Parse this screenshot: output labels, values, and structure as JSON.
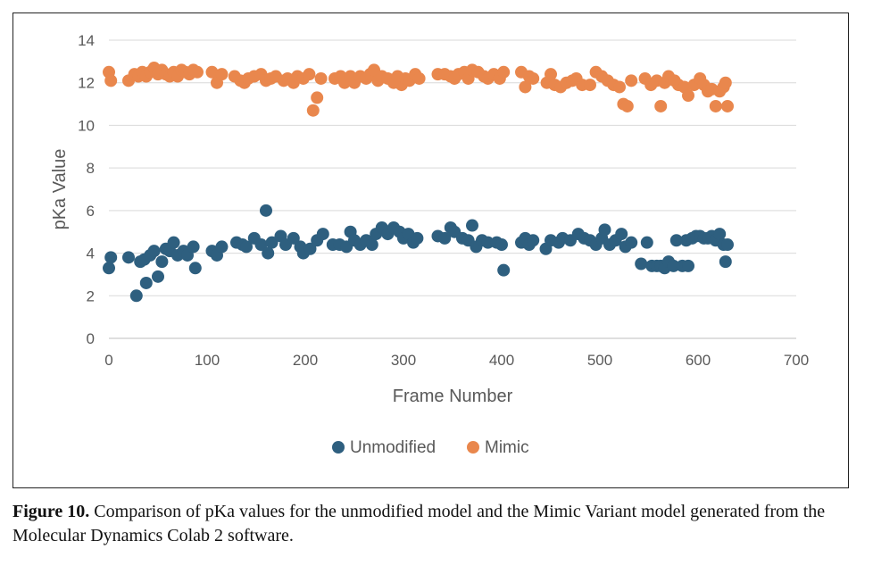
{
  "chart_data": {
    "type": "scatter",
    "xlabel": "Frame Number",
    "ylabel": "pKa Value",
    "xlim": [
      0,
      700
    ],
    "ylim": [
      0,
      14
    ],
    "xticks": [
      "0",
      "100",
      "200",
      "300",
      "400",
      "500",
      "600",
      "700"
    ],
    "yticks": [
      "0",
      "2",
      "4",
      "6",
      "8",
      "10",
      "12",
      "14"
    ],
    "grid": "horizontal",
    "legend_position": "bottom",
    "series": [
      {
        "name": "Unmodified",
        "color": "#2E5F7F",
        "points": [
          [
            0,
            3.3
          ],
          [
            2,
            3.8
          ],
          [
            20,
            3.8
          ],
          [
            28,
            2.0
          ],
          [
            32,
            3.6
          ],
          [
            36,
            3.7
          ],
          [
            38,
            2.6
          ],
          [
            42,
            3.9
          ],
          [
            46,
            4.1
          ],
          [
            50,
            2.9
          ],
          [
            54,
            3.6
          ],
          [
            58,
            4.2
          ],
          [
            62,
            4.1
          ],
          [
            66,
            4.5
          ],
          [
            70,
            3.9
          ],
          [
            76,
            4.1
          ],
          [
            80,
            3.9
          ],
          [
            86,
            4.3
          ],
          [
            88,
            3.3
          ],
          [
            105,
            4.1
          ],
          [
            110,
            3.9
          ],
          [
            115,
            4.3
          ],
          [
            130,
            4.5
          ],
          [
            136,
            4.4
          ],
          [
            140,
            4.3
          ],
          [
            148,
            4.7
          ],
          [
            155,
            4.4
          ],
          [
            160,
            6.0
          ],
          [
            162,
            4.0
          ],
          [
            166,
            4.5
          ],
          [
            175,
            4.8
          ],
          [
            180,
            4.4
          ],
          [
            188,
            4.7
          ],
          [
            195,
            4.3
          ],
          [
            198,
            4.0
          ],
          [
            205,
            4.2
          ],
          [
            212,
            4.6
          ],
          [
            218,
            4.9
          ],
          [
            228,
            4.4
          ],
          [
            235,
            4.4
          ],
          [
            242,
            4.3
          ],
          [
            246,
            5.0
          ],
          [
            250,
            4.6
          ],
          [
            256,
            4.4
          ],
          [
            262,
            4.6
          ],
          [
            268,
            4.4
          ],
          [
            272,
            4.9
          ],
          [
            278,
            5.2
          ],
          [
            284,
            4.9
          ],
          [
            290,
            5.2
          ],
          [
            296,
            5.0
          ],
          [
            300,
            4.7
          ],
          [
            305,
            4.9
          ],
          [
            310,
            4.5
          ],
          [
            314,
            4.7
          ],
          [
            335,
            4.8
          ],
          [
            342,
            4.7
          ],
          [
            348,
            5.2
          ],
          [
            352,
            5.0
          ],
          [
            360,
            4.7
          ],
          [
            366,
            4.6
          ],
          [
            370,
            5.3
          ],
          [
            374,
            4.3
          ],
          [
            380,
            4.6
          ],
          [
            386,
            4.5
          ],
          [
            395,
            4.5
          ],
          [
            400,
            4.4
          ],
          [
            402,
            3.2
          ],
          [
            420,
            4.5
          ],
          [
            424,
            4.7
          ],
          [
            428,
            4.4
          ],
          [
            432,
            4.6
          ],
          [
            445,
            4.2
          ],
          [
            450,
            4.6
          ],
          [
            458,
            4.5
          ],
          [
            462,
            4.7
          ],
          [
            470,
            4.6
          ],
          [
            478,
            4.9
          ],
          [
            484,
            4.7
          ],
          [
            490,
            4.6
          ],
          [
            496,
            4.4
          ],
          [
            502,
            4.7
          ],
          [
            505,
            5.1
          ],
          [
            510,
            4.4
          ],
          [
            516,
            4.6
          ],
          [
            522,
            4.9
          ],
          [
            526,
            4.3
          ],
          [
            532,
            4.5
          ],
          [
            542,
            3.5
          ],
          [
            548,
            4.5
          ],
          [
            553,
            3.4
          ],
          [
            558,
            3.4
          ],
          [
            562,
            3.4
          ],
          [
            566,
            3.3
          ],
          [
            570,
            3.6
          ],
          [
            575,
            3.4
          ],
          [
            578,
            4.6
          ],
          [
            584,
            3.4
          ],
          [
            588,
            4.6
          ],
          [
            590,
            3.4
          ],
          [
            594,
            4.7
          ],
          [
            598,
            4.8
          ],
          [
            602,
            4.8
          ],
          [
            606,
            4.7
          ],
          [
            610,
            4.7
          ],
          [
            614,
            4.8
          ],
          [
            618,
            4.6
          ],
          [
            622,
            4.9
          ],
          [
            626,
            4.4
          ],
          [
            628,
            3.6
          ],
          [
            630,
            4.4
          ]
        ]
      },
      {
        "name": "Mimic",
        "color": "#E9874D",
        "points": [
          [
            0,
            12.5
          ],
          [
            2,
            12.1
          ],
          [
            20,
            12.1
          ],
          [
            26,
            12.4
          ],
          [
            30,
            12.3
          ],
          [
            34,
            12.5
          ],
          [
            38,
            12.3
          ],
          [
            42,
            12.5
          ],
          [
            46,
            12.7
          ],
          [
            50,
            12.4
          ],
          [
            54,
            12.6
          ],
          [
            58,
            12.4
          ],
          [
            62,
            12.3
          ],
          [
            66,
            12.5
          ],
          [
            70,
            12.3
          ],
          [
            74,
            12.6
          ],
          [
            78,
            12.5
          ],
          [
            82,
            12.4
          ],
          [
            86,
            12.6
          ],
          [
            90,
            12.5
          ],
          [
            105,
            12.5
          ],
          [
            110,
            12.0
          ],
          [
            115,
            12.4
          ],
          [
            128,
            12.3
          ],
          [
            134,
            12.1
          ],
          [
            138,
            12.0
          ],
          [
            142,
            12.2
          ],
          [
            148,
            12.3
          ],
          [
            155,
            12.4
          ],
          [
            160,
            12.1
          ],
          [
            165,
            12.2
          ],
          [
            170,
            12.3
          ],
          [
            178,
            12.1
          ],
          [
            182,
            12.2
          ],
          [
            188,
            12.0
          ],
          [
            192,
            12.3
          ],
          [
            198,
            12.2
          ],
          [
            204,
            12.4
          ],
          [
            208,
            10.7
          ],
          [
            212,
            11.3
          ],
          [
            216,
            12.2
          ],
          [
            230,
            12.2
          ],
          [
            236,
            12.3
          ],
          [
            240,
            12.0
          ],
          [
            246,
            12.3
          ],
          [
            250,
            12.0
          ],
          [
            256,
            12.3
          ],
          [
            262,
            12.2
          ],
          [
            266,
            12.4
          ],
          [
            270,
            12.6
          ],
          [
            274,
            12.1
          ],
          [
            278,
            12.3
          ],
          [
            284,
            12.2
          ],
          [
            290,
            12.0
          ],
          [
            294,
            12.3
          ],
          [
            298,
            11.9
          ],
          [
            302,
            12.2
          ],
          [
            306,
            12.1
          ],
          [
            312,
            12.4
          ],
          [
            316,
            12.2
          ],
          [
            335,
            12.4
          ],
          [
            342,
            12.4
          ],
          [
            348,
            12.3
          ],
          [
            352,
            12.2
          ],
          [
            356,
            12.4
          ],
          [
            362,
            12.5
          ],
          [
            366,
            12.2
          ],
          [
            370,
            12.6
          ],
          [
            376,
            12.5
          ],
          [
            382,
            12.3
          ],
          [
            386,
            12.2
          ],
          [
            392,
            12.4
          ],
          [
            398,
            12.2
          ],
          [
            402,
            12.5
          ],
          [
            420,
            12.5
          ],
          [
            424,
            11.8
          ],
          [
            428,
            12.3
          ],
          [
            432,
            12.2
          ],
          [
            446,
            12.0
          ],
          [
            450,
            12.4
          ],
          [
            454,
            11.9
          ],
          [
            460,
            11.8
          ],
          [
            466,
            12.0
          ],
          [
            472,
            12.1
          ],
          [
            476,
            12.2
          ],
          [
            482,
            11.9
          ],
          [
            490,
            11.9
          ],
          [
            496,
            12.5
          ],
          [
            502,
            12.3
          ],
          [
            508,
            12.1
          ],
          [
            514,
            11.9
          ],
          [
            520,
            11.8
          ],
          [
            524,
            11.0
          ],
          [
            528,
            10.9
          ],
          [
            532,
            12.1
          ],
          [
            546,
            12.2
          ],
          [
            552,
            11.9
          ],
          [
            558,
            12.1
          ],
          [
            562,
            10.9
          ],
          [
            566,
            12.0
          ],
          [
            570,
            12.3
          ],
          [
            576,
            12.1
          ],
          [
            580,
            11.9
          ],
          [
            586,
            11.8
          ],
          [
            590,
            11.4
          ],
          [
            596,
            11.9
          ],
          [
            602,
            12.2
          ],
          [
            606,
            11.9
          ],
          [
            610,
            11.6
          ],
          [
            614,
            11.7
          ],
          [
            618,
            10.9
          ],
          [
            622,
            11.6
          ],
          [
            626,
            11.8
          ],
          [
            628,
            12.0
          ],
          [
            630,
            10.9
          ]
        ]
      }
    ]
  },
  "caption": {
    "label": "Figure 10.",
    "text": " Comparison of pKa values for the unmodified model and the Mimic Variant model generated from the Molecular Dynamics Colab 2 software."
  }
}
